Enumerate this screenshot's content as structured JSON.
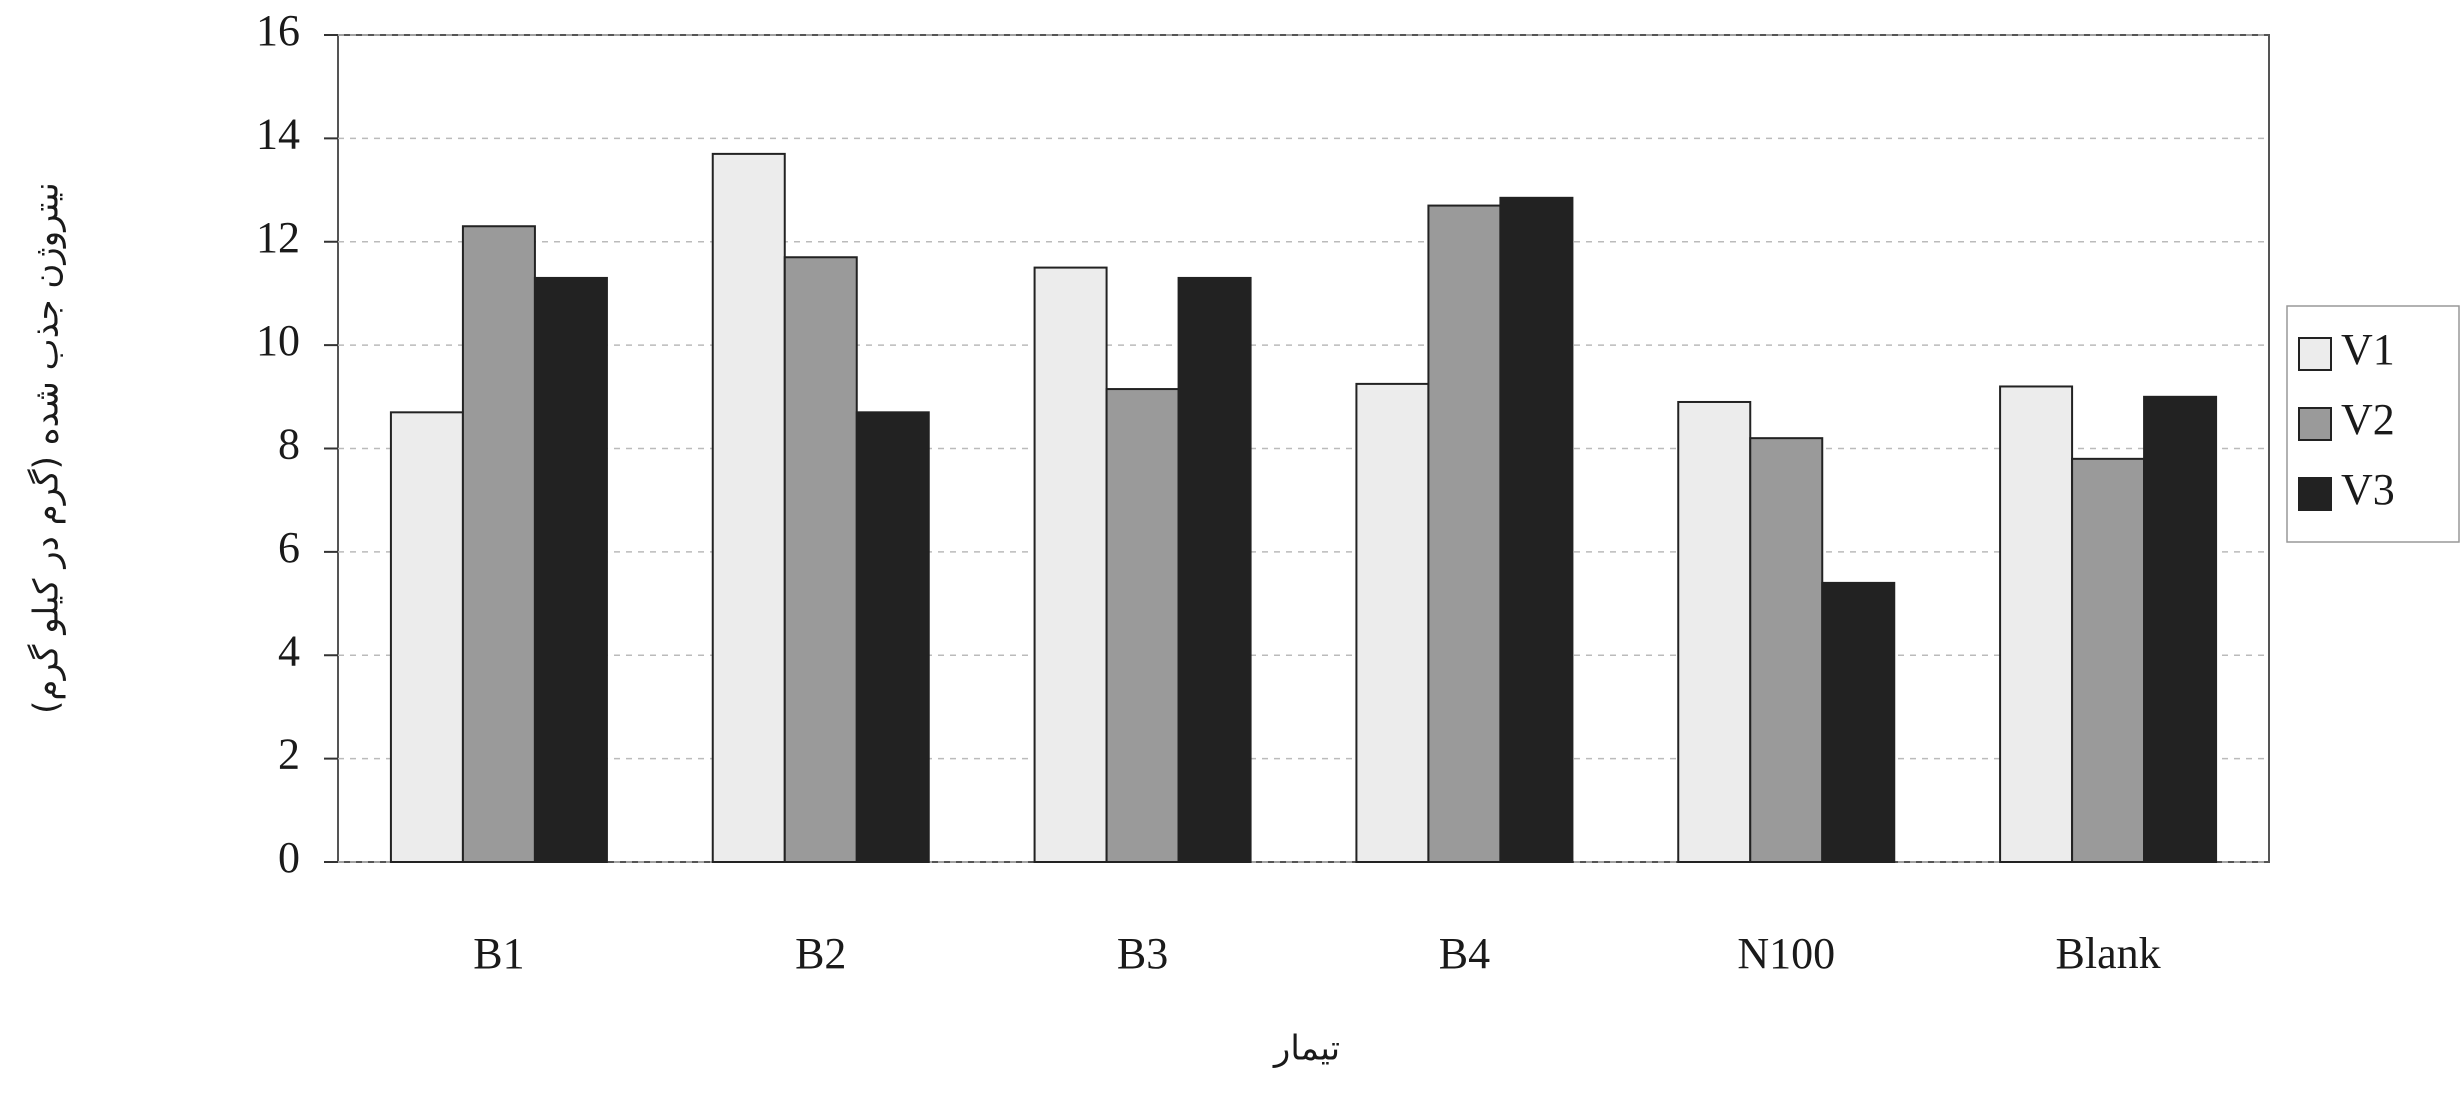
{
  "chart_data": {
    "type": "bar",
    "xlabel": "تیمار",
    "ylabel": "نیتروژن جذب شده (گرم در کیلو گرم)",
    "categories": [
      "B1",
      "B2",
      "B3",
      "B4",
      "N100",
      "Blank"
    ],
    "series": [
      {
        "name": "V1",
        "color": "#ececec",
        "values": [
          8.7,
          13.7,
          11.5,
          9.25,
          8.9,
          9.2
        ]
      },
      {
        "name": "V2",
        "color": "#9a9a9a",
        "values": [
          12.3,
          11.7,
          9.15,
          12.7,
          8.2,
          7.8
        ]
      },
      {
        "name": "V3",
        "color": "#222222",
        "values": [
          11.3,
          8.7,
          11.3,
          12.85,
          5.4,
          9.0
        ]
      }
    ],
    "ylim": [
      0,
      16
    ],
    "yticks": [
      0,
      2,
      4,
      6,
      8,
      10,
      12,
      14,
      16
    ],
    "grid": true,
    "legend": "right"
  }
}
